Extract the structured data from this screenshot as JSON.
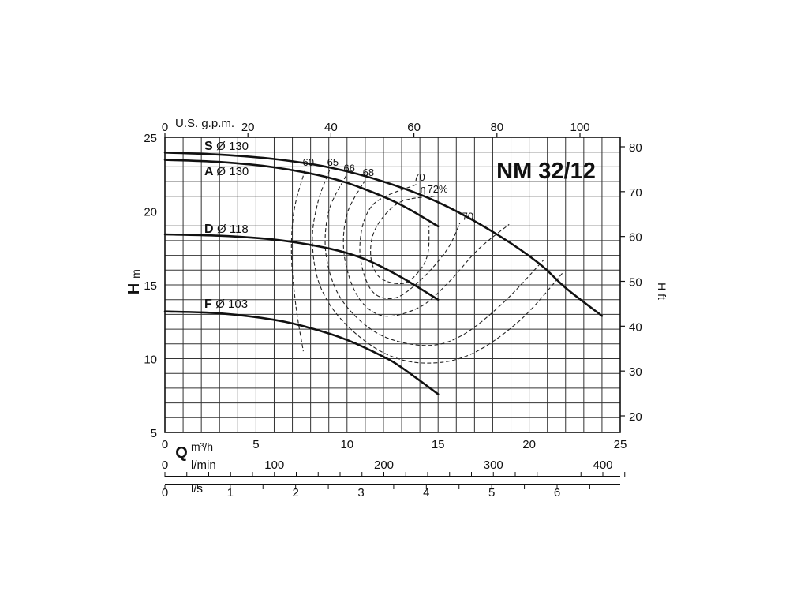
{
  "chart_data": {
    "type": "line",
    "title": "NM 32/12",
    "x_axis": {
      "label": "Q",
      "unit_label": "m³/h",
      "range": [
        0,
        25
      ],
      "ticks": [
        "0",
        "5",
        "10",
        "15",
        "20",
        "25"
      ]
    },
    "y_axis_left": {
      "label": "H",
      "unit_label": "m",
      "range": [
        5,
        25
      ],
      "ticks": [
        "5",
        "10",
        "15",
        "20",
        "25"
      ]
    },
    "y_axis_right": {
      "label": "H ft",
      "range": [
        20,
        80
      ],
      "ticks": [
        "20",
        "30",
        "40",
        "50",
        "60",
        "70",
        "80"
      ]
    },
    "top_axis": {
      "label": "U.S. g.p.m.",
      "range": [
        0,
        100
      ],
      "ticks": [
        "0",
        "20",
        "40",
        "60",
        "80",
        "100"
      ]
    },
    "secondary_x_axes": [
      {
        "label": "l/min",
        "range": [
          0,
          400
        ],
        "ticks": [
          "0",
          "100",
          "200",
          "300",
          "400"
        ]
      },
      {
        "label": "l/s",
        "range": [
          0,
          6
        ],
        "ticks": [
          "0",
          "1",
          "2",
          "3",
          "4",
          "5",
          "6"
        ]
      }
    ],
    "grid": true,
    "series": [
      {
        "name": "S",
        "diameter_label": "Ø 130",
        "x": [
          0,
          3,
          6,
          9,
          12,
          15,
          18,
          20.5,
          22,
          24
        ],
        "y": [
          23.97,
          23.83,
          23.53,
          22.97,
          22.0,
          20.6,
          18.6,
          16.5,
          14.8,
          12.9
        ]
      },
      {
        "name": "A",
        "diameter_label": "Ø 130",
        "x": [
          0,
          3,
          6,
          9,
          11,
          13,
          15
        ],
        "y": [
          23.47,
          23.33,
          22.97,
          22.27,
          21.47,
          20.4,
          18.97
        ]
      },
      {
        "name": "D",
        "diameter_label": "Ø 118",
        "x": [
          0,
          3,
          6,
          9,
          11,
          13,
          15
        ],
        "y": [
          18.42,
          18.33,
          18.07,
          17.47,
          16.73,
          15.5,
          14.0
        ]
      },
      {
        "name": "F",
        "diameter_label": "Ø 103",
        "x": [
          0,
          3,
          6,
          8,
          10,
          12,
          13,
          15
        ],
        "y": [
          13.2,
          13.07,
          12.63,
          12.07,
          11.27,
          10.13,
          9.4,
          7.6
        ]
      }
    ],
    "efficiency_label": "η",
    "efficiency_lines": [
      {
        "label": "60",
        "x": [
          7.7,
          7.1,
          6.95,
          7.2,
          7.6
        ],
        "y": [
          22.8,
          20.1,
          17.0,
          13.5,
          10.5
        ]
      },
      {
        "label": "65",
        "x": [
          9.05,
          8.4,
          8.1,
          8.5,
          9.8,
          12.0,
          14.3,
          16.8,
          19.5,
          21.9
        ],
        "y": [
          22.8,
          20.6,
          18.0,
          15.0,
          12.5,
          10.4,
          9.7,
          10.3,
          12.6,
          15.9
        ]
      },
      {
        "label": "66",
        "x": [
          9.95,
          9.0,
          8.85,
          9.7,
          11.7,
          14.2,
          16.2,
          18.5,
          20.8
        ],
        "y": [
          22.4,
          20.0,
          17.0,
          14.0,
          11.7,
          10.9,
          11.5,
          13.7,
          16.7
        ]
      },
      {
        "label": "68",
        "x": [
          11.0,
          10.0,
          9.85,
          10.6,
          12.0,
          14.0,
          15.6,
          17.2,
          18.9
        ],
        "y": [
          22.1,
          19.8,
          17.0,
          14.2,
          12.9,
          13.5,
          15.2,
          17.4,
          19.1
        ]
      },
      {
        "label": "70",
        "x": [
          13.8,
          11.4,
          10.7,
          11.3,
          12.6,
          14.1,
          15.5,
          16.2
        ],
        "y": [
          21.8,
          20.4,
          17.5,
          14.7,
          14.1,
          15.4,
          17.4,
          19.2
        ]
      },
      {
        "label": "72%",
        "x": [
          14.8,
          12.9,
          11.6,
          11.3,
          11.8,
          13.1,
          14.0,
          14.45,
          14.5
        ],
        "y": [
          21.0,
          20.6,
          18.9,
          17.0,
          15.5,
          15.1,
          16.0,
          17.2,
          19.0
        ]
      }
    ]
  }
}
